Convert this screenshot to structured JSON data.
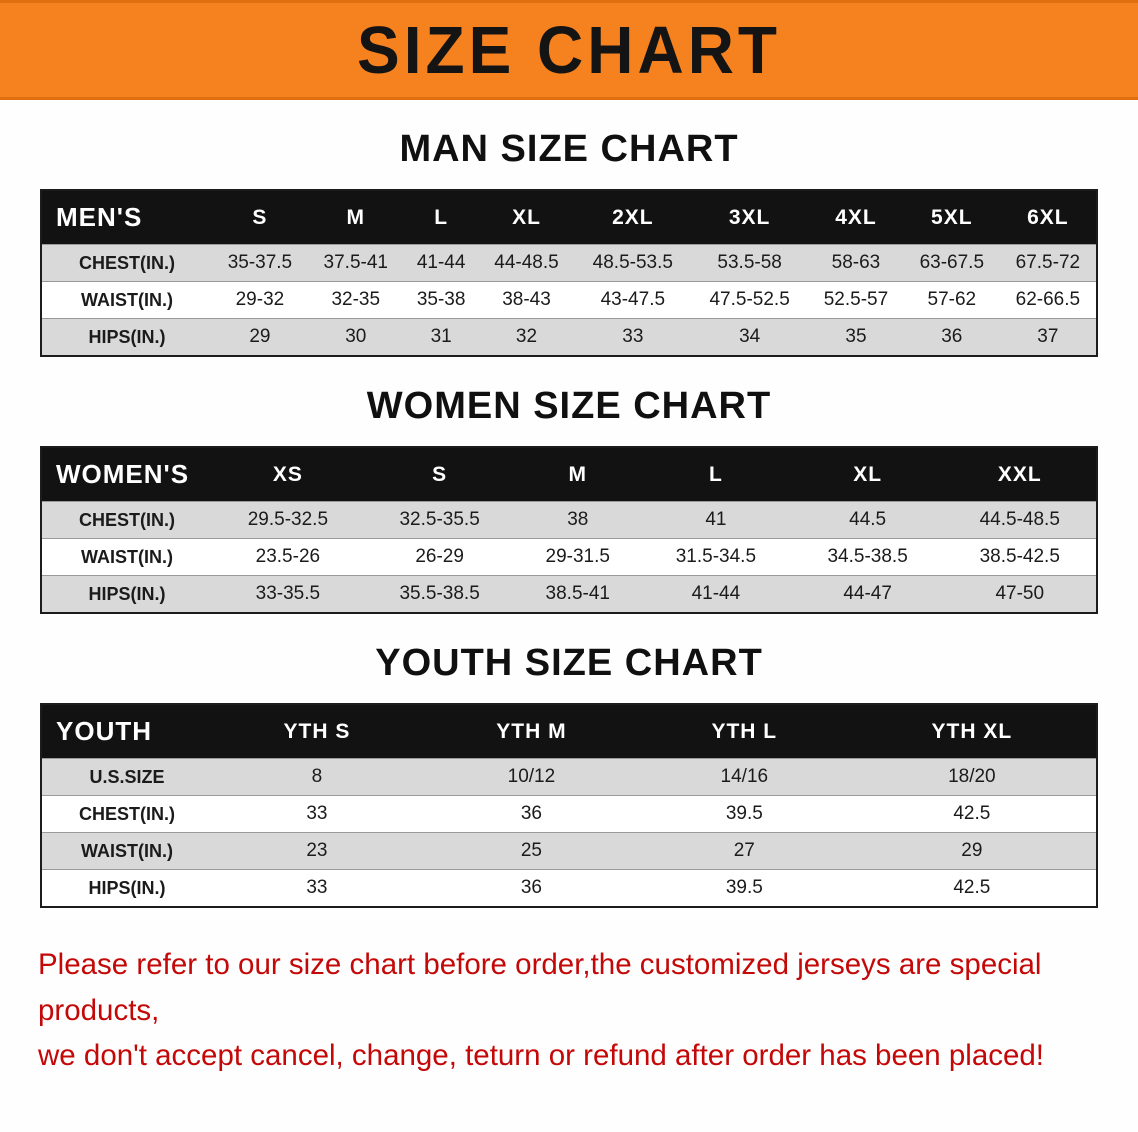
{
  "banner": {
    "title": "SIZE CHART",
    "bg_color": "#f6821f",
    "text_color": "#141414"
  },
  "sections": [
    {
      "heading": "MAN SIZE CHART",
      "table": {
        "header": [
          "MEN'S",
          "S",
          "M",
          "L",
          "XL",
          "2XL",
          "3XL",
          "4XL",
          "5XL",
          "6XL"
        ],
        "rows": [
          [
            "CHEST(IN.)",
            "35-37.5",
            "37.5-41",
            "41-44",
            "44-48.5",
            "48.5-53.5",
            "53.5-58",
            "58-63",
            "63-67.5",
            "67.5-72"
          ],
          [
            "WAIST(IN.)",
            "29-32",
            "32-35",
            "35-38",
            "38-43",
            "43-47.5",
            "47.5-52.5",
            "52.5-57",
            "57-62",
            "62-66.5"
          ],
          [
            "HIPS(IN.)",
            "29",
            "30",
            "31",
            "32",
            "33",
            "34",
            "35",
            "36",
            "37"
          ]
        ]
      }
    },
    {
      "heading": "WOMEN SIZE CHART",
      "table": {
        "header": [
          "WOMEN'S",
          "XS",
          "S",
          "M",
          "L",
          "XL",
          "XXL"
        ],
        "rows": [
          [
            "CHEST(IN.)",
            "29.5-32.5",
            "32.5-35.5",
            "38",
            "41",
            "44.5",
            "44.5-48.5"
          ],
          [
            "WAIST(IN.)",
            "23.5-26",
            "26-29",
            "29-31.5",
            "31.5-34.5",
            "34.5-38.5",
            "38.5-42.5"
          ],
          [
            "HIPS(IN.)",
            "33-35.5",
            "35.5-38.5",
            "38.5-41",
            "41-44",
            "44-47",
            "47-50"
          ]
        ]
      }
    },
    {
      "heading": "YOUTH SIZE CHART",
      "table": {
        "header": [
          "YOUTH",
          "YTH S",
          "YTH M",
          "YTH L",
          "YTH XL"
        ],
        "rows": [
          [
            "U.S.SIZE",
            "8",
            "10/12",
            "14/16",
            "18/20"
          ],
          [
            "CHEST(IN.)",
            "33",
            "36",
            "39.5",
            "42.5"
          ],
          [
            "WAIST(IN.)",
            "23",
            "25",
            "27",
            "29"
          ],
          [
            "HIPS(IN.)",
            "33",
            "36",
            "39.5",
            "42.5"
          ]
        ]
      }
    }
  ],
  "footer": {
    "line1": "Please refer to our size chart before order,the customized jerseys are special products,",
    "line2": "we don't accept cancel, change, teturn or refund after order has been placed!",
    "text_color": "#c40808"
  },
  "colors": {
    "header_row_bg": "#121212",
    "header_row_text": "#ffffff",
    "alt_row_bg": "#d9d9d9",
    "table_border": "#1c1c1c"
  }
}
